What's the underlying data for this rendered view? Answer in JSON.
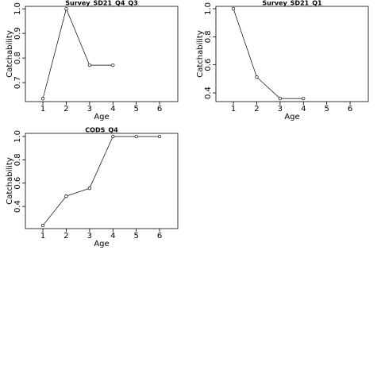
{
  "chart_data": [
    {
      "type": "line",
      "title": "Survey_SD21_Q4_Q3",
      "x_label": "Age",
      "y_label": "Catchability",
      "x": [
        1,
        2,
        3,
        4
      ],
      "values": [
        0.635,
        1.0,
        0.771,
        0.771
      ],
      "color": "#000000",
      "xlim": [
        0.25,
        6.78
      ],
      "xticks": [
        1,
        2,
        3,
        4,
        5,
        6
      ],
      "ylim": [
        0.623,
        1.01
      ],
      "yticks": [
        0.7,
        0.8,
        0.9,
        {
          "value": 1.0,
          "label": "1.0"
        }
      ]
    },
    {
      "type": "line",
      "title": "Survey_SD21_Q1",
      "x_label": "Age",
      "y_label": "Catchability",
      "x": [
        1,
        2,
        3,
        4
      ],
      "values": [
        1.0,
        0.513,
        0.36,
        0.36
      ],
      "color": "#000000",
      "xlim": [
        0.25,
        6.78
      ],
      "xticks": [
        1,
        2,
        3,
        4,
        5,
        6
      ],
      "ylim": [
        0.338,
        1.017
      ],
      "yticks": [
        0.4,
        0.6,
        0.8,
        {
          "value": 1.0,
          "label": "1.0"
        }
      ]
    },
    {
      "type": "line",
      "title": "CODS_Q4",
      "x_label": "Age",
      "y_label": "Catchability",
      "x": [
        1,
        2,
        3,
        4,
        5,
        6
      ],
      "values": [
        0.237,
        0.488,
        0.556,
        1.0,
        1.0,
        1.0
      ],
      "color": "#000000",
      "xlim": [
        0.25,
        6.78
      ],
      "xticks": [
        1,
        2,
        3,
        4,
        5,
        6
      ],
      "ylim": [
        0.21,
        1.027
      ],
      "yticks": [
        0.4,
        0.6,
        0.8,
        {
          "value": 1.0,
          "label": "1.0"
        }
      ]
    }
  ]
}
